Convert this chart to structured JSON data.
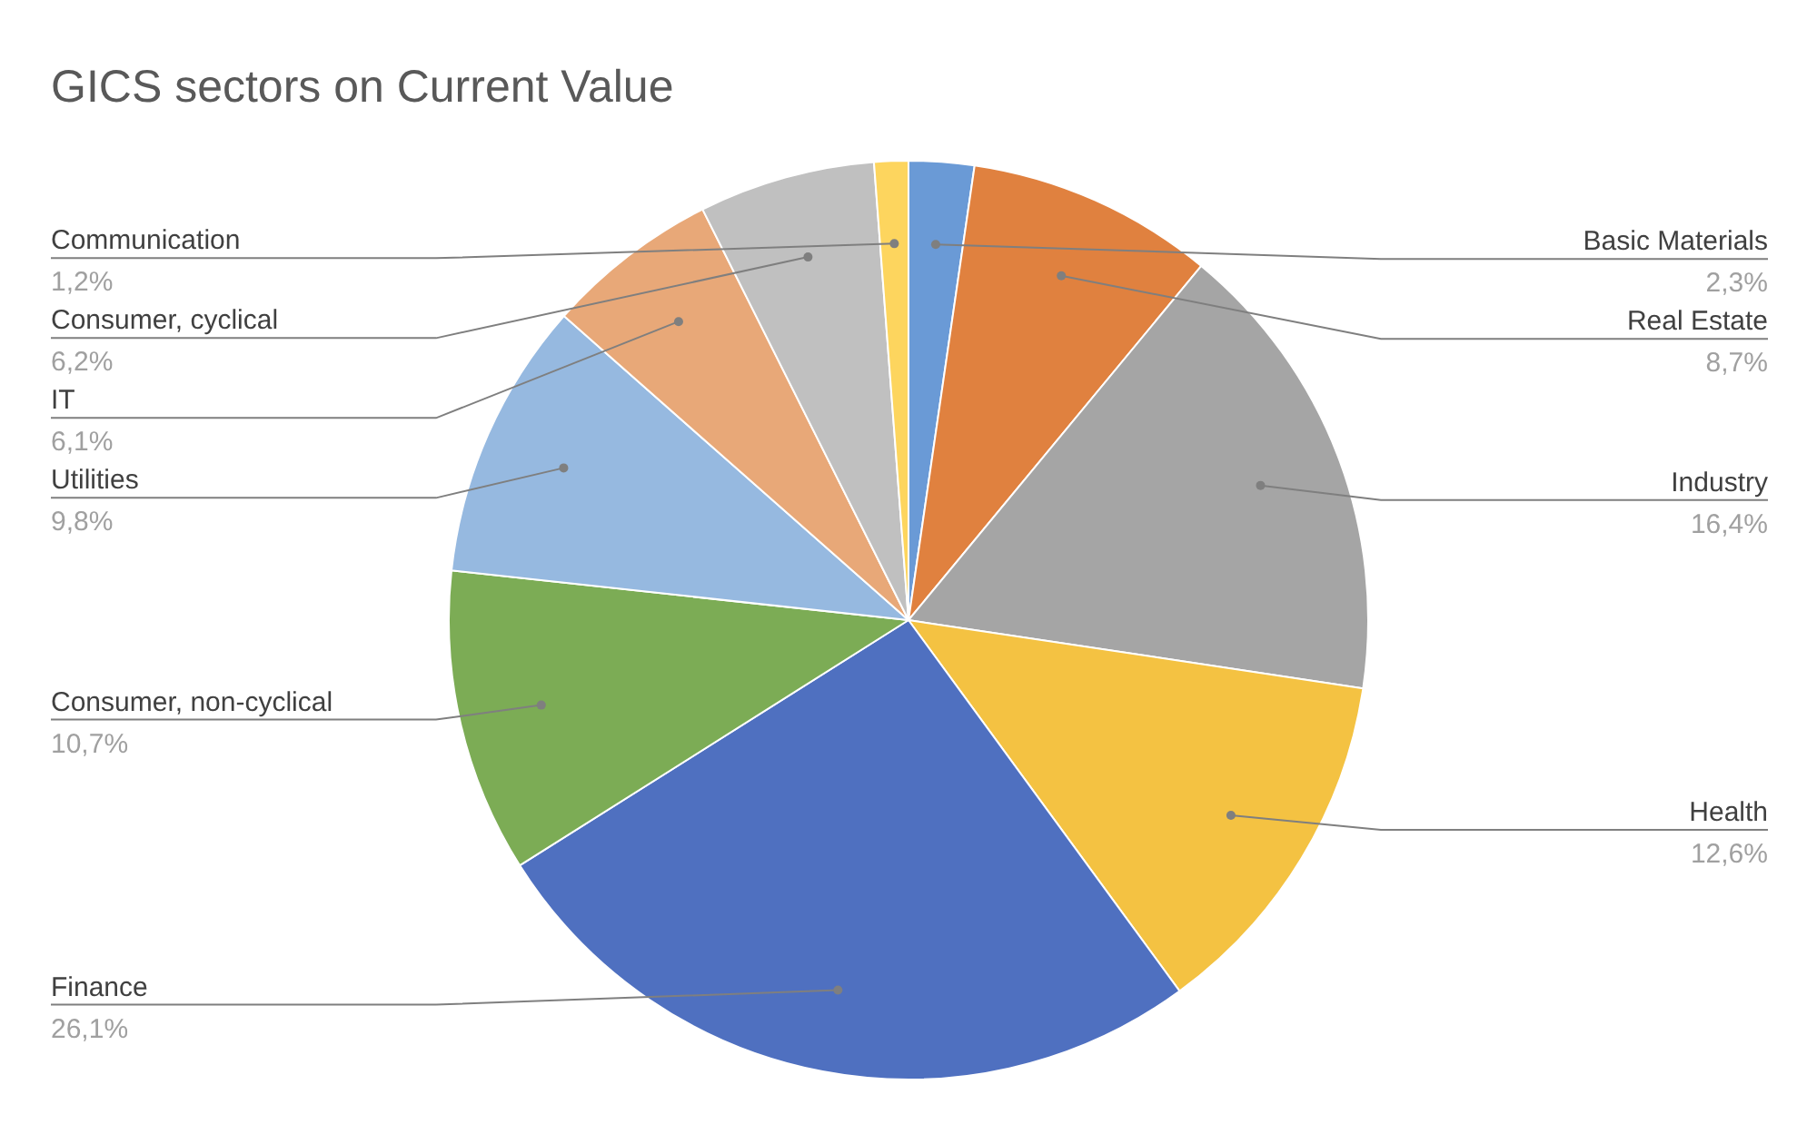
{
  "chart_data": {
    "type": "pie",
    "title": "GICS sectors on Current Value",
    "categories": [
      "Basic Materials",
      "Real Estate",
      "Industry",
      "Health",
      "Finance",
      "Consumer, non-cyclical",
      "Utilities",
      "IT",
      "Consumer, cyclical",
      "Communication"
    ],
    "values": [
      2.3,
      8.7,
      16.4,
      12.6,
      26.1,
      10.7,
      9.8,
      6.1,
      6.2,
      1.2
    ],
    "value_labels": [
      "2,3%",
      "8,7%",
      "16,4%",
      "12,6%",
      "26,1%",
      "10,7%",
      "9,8%",
      "6,1%",
      "6,2%",
      "1,2%"
    ],
    "colors": [
      "#6a9ad6",
      "#e0813f",
      "#a5a5a5",
      "#f4c242",
      "#4f70c0",
      "#7cac55",
      "#96b9e0",
      "#e8a878",
      "#c0c0c0",
      "#fdd55e"
    ],
    "legend": false
  }
}
